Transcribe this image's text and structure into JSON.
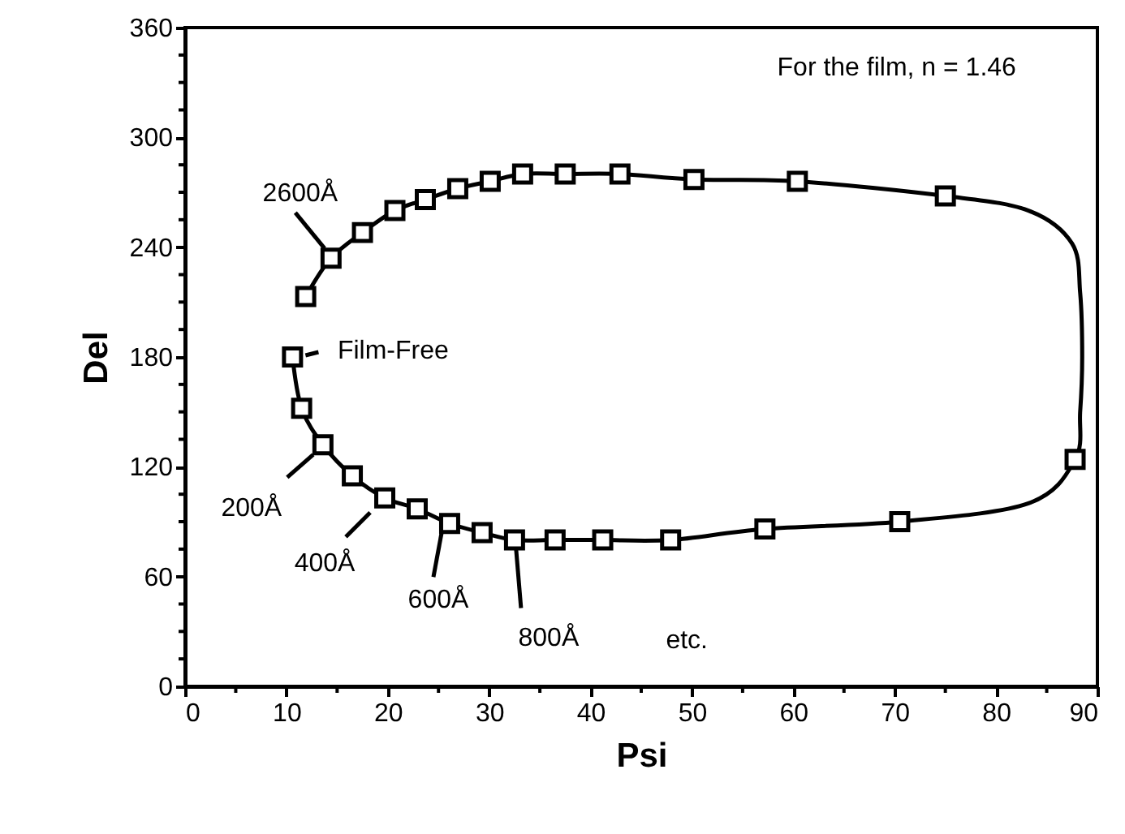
{
  "chart_data": {
    "type": "line",
    "xlabel": "Psi",
    "ylabel": "Del",
    "xlim": [
      0,
      90
    ],
    "ylim": [
      0,
      360
    ],
    "xticks": [
      0,
      {
        "value": 5,
        "label": null
      },
      10,
      {
        "value": 15,
        "label": null
      },
      20,
      {
        "value": 25,
        "label": null
      },
      30,
      {
        "value": 35,
        "label": null
      },
      40,
      {
        "value": 45,
        "label": null
      },
      50,
      {
        "value": 55,
        "label": null
      },
      60,
      {
        "value": 65,
        "label": null
      },
      70,
      {
        "value": 75,
        "label": null
      },
      80,
      {
        "value": 85,
        "label": null
      },
      90
    ],
    "yticks": [
      0,
      {
        "value": 15,
        "label": null
      },
      {
        "value": 30,
        "label": null
      },
      {
        "value": 45,
        "label": null
      },
      60,
      {
        "value": 75,
        "label": null
      },
      {
        "value": 90,
        "label": null
      },
      {
        "value": 105,
        "label": null
      },
      120,
      {
        "value": 135,
        "label": null
      },
      {
        "value": 150,
        "label": null
      },
      {
        "value": 165,
        "label": null
      },
      180,
      {
        "value": 195,
        "label": null
      },
      {
        "value": 210,
        "label": null
      },
      {
        "value": 225,
        "label": null
      },
      240,
      {
        "value": 255,
        "label": null
      },
      {
        "value": 270,
        "label": null
      },
      {
        "value": 285,
        "label": null
      },
      300,
      {
        "value": 315,
        "label": null
      },
      {
        "value": 330,
        "label": null
      },
      {
        "value": 345,
        "label": null
      },
      360
    ],
    "grid": false,
    "series": [
      {
        "type": "line",
        "color": "#000000",
        "marker": "none",
        "line_style": "solid",
        "x": [
          10.6,
          11.5,
          13.6,
          16.5,
          19.7,
          22.9,
          26.1,
          29.3,
          32.5,
          36.5,
          41.2,
          47.9,
          57.2,
          70.5,
          83.2,
          87.8,
          88.3,
          88.5,
          88.3,
          87.5,
          83.2,
          75.0,
          60.4,
          50.2,
          42.9,
          37.5,
          33.3,
          30.1,
          26.9,
          23.7,
          20.7,
          17.5,
          14.4,
          11.9
        ],
        "values": [
          180,
          152,
          132,
          115,
          103,
          97,
          89,
          84,
          80,
          80,
          80,
          80,
          86,
          90,
          100,
          124,
          150,
          180,
          215,
          242,
          260,
          268,
          276,
          277,
          280,
          280,
          280,
          276,
          272,
          266,
          260,
          248,
          234,
          213
        ]
      },
      {
        "type": "scatter",
        "color": "#000000",
        "marker": "square",
        "x": [
          10.6,
          11.5,
          13.6,
          16.5,
          19.7,
          22.9,
          26.1,
          29.3,
          32.5,
          36.5,
          41.2,
          47.9,
          57.2,
          70.5,
          87.8,
          75.0,
          60.4,
          50.2,
          42.9,
          37.5,
          33.3,
          30.1,
          26.9,
          23.7,
          20.7,
          17.5,
          14.4,
          11.9
        ],
        "values": [
          180,
          152,
          132,
          115,
          103,
          97,
          89,
          84,
          80,
          80,
          80,
          80,
          86,
          90,
          124,
          268,
          276,
          277,
          280,
          280,
          280,
          276,
          272,
          266,
          260,
          248,
          234,
          213
        ]
      }
    ],
    "annotations": [
      "For the film, n = 1.46",
      {
        "text": "2600Å",
        "x": 14.4,
        "y": 234
      },
      {
        "text": "Film-Free",
        "x": 10.6,
        "y": 180
      },
      {
        "text": "200Å",
        "x": 13.6,
        "y": 132
      },
      {
        "text": "400Å",
        "x": 19.7,
        "y": 103
      },
      {
        "text": "600Å",
        "x": 26.1,
        "y": 89
      },
      {
        "text": "800Å",
        "x": 32.5,
        "y": 80
      },
      "etc."
    ]
  }
}
